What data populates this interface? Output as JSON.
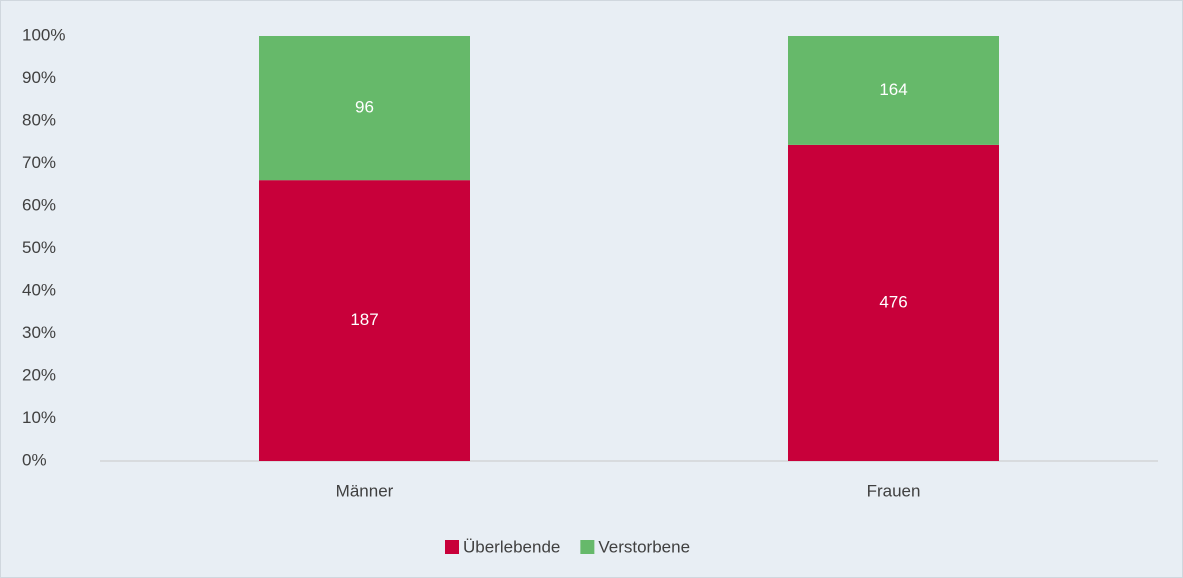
{
  "chart_data": {
    "type": "bar",
    "stacking": "percent",
    "categories": [
      "Männer",
      "Frauen"
    ],
    "series": [
      {
        "name": "Überlebende",
        "color": "#c8003a",
        "values": [
          187,
          476
        ]
      },
      {
        "name": "Verstorbene",
        "color": "#66b96a",
        "values": [
          96,
          164
        ]
      }
    ],
    "ylim": [
      0,
      100
    ],
    "yticks": [
      {
        "value": 0,
        "label": "0%"
      },
      {
        "value": 10,
        "label": "10%"
      },
      {
        "value": 20,
        "label": "20%"
      },
      {
        "value": 30,
        "label": "30%"
      },
      {
        "value": 40,
        "label": "40%"
      },
      {
        "value": 50,
        "label": "50%"
      },
      {
        "value": 60,
        "label": "60%"
      },
      {
        "value": 70,
        "label": "70%"
      },
      {
        "value": 80,
        "label": "80%"
      },
      {
        "value": 90,
        "label": "90%"
      },
      {
        "value": 100,
        "label": "100%"
      }
    ],
    "grid": false,
    "legend": "bottom"
  }
}
